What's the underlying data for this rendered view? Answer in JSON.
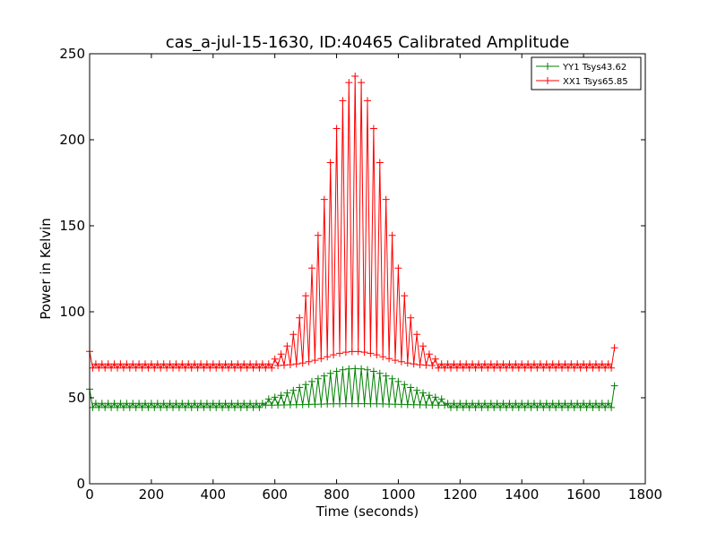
{
  "chart_data": {
    "type": "line",
    "title": "cas_a-jul-15-1630, ID:40465 Calibrated Amplitude",
    "xlabel": "Time (seconds)",
    "ylabel": "Power in Kelvin",
    "xlim": [
      0,
      1800
    ],
    "ylim": [
      0,
      250
    ],
    "xticks": [
      0,
      200,
      400,
      600,
      800,
      1000,
      1200,
      1400,
      1600,
      1800
    ],
    "yticks": [
      0,
      50,
      100,
      150,
      200,
      250
    ],
    "grid": false,
    "legend_position": "top-right",
    "marker": "+",
    "series": [
      {
        "name": "YY1 Tsys43.62",
        "color": "#008000",
        "baseline": 45.5,
        "peak": 67,
        "peak_center": 860,
        "peak_sigma": 150,
        "x_start": 0,
        "x_end": 1700,
        "x_step": 10,
        "start_spike": 55,
        "end_spike": 57
      },
      {
        "name": "XX1 Tsys65.85",
        "color": "#ff0000",
        "baseline": 68.5,
        "peak": 237,
        "peak_center": 860,
        "peak_sigma": 95,
        "x_start": 0,
        "x_end": 1700,
        "x_step": 10,
        "start_spike": 77,
        "end_spike": 79
      }
    ]
  }
}
